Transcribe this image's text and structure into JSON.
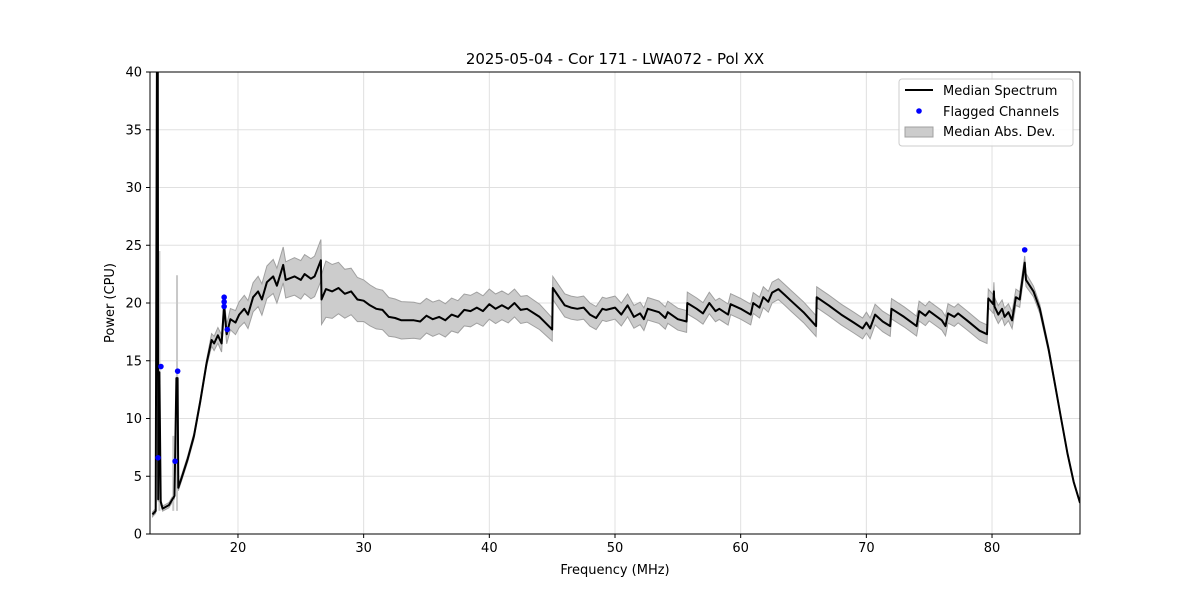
{
  "chart_data": {
    "type": "line",
    "title": "2025-05-04 - Cor 171 - LWA072 - Pol XX",
    "xlabel": "Frequency (MHz)",
    "ylabel": "Power (CPU)",
    "xlim": [
      13.0,
      87.0
    ],
    "ylim": [
      0,
      40
    ],
    "xticks": [
      20,
      30,
      40,
      50,
      60,
      70,
      80
    ],
    "yticks": [
      0,
      5,
      10,
      15,
      20,
      25,
      30,
      35,
      40
    ],
    "grid": true,
    "legend": {
      "placement": "top-right",
      "entries": [
        "Median Spectrum",
        "Flagged Channels",
        "Median Abs. Dev."
      ]
    },
    "colors": {
      "median": "#000000",
      "flagged": "#0000ff",
      "mad_fill": "#cccccc",
      "mad_edge": "#a0a0a0"
    },
    "median_spectrum": [
      [
        13.2,
        1.7
      ],
      [
        13.45,
        2.0
      ],
      [
        13.55,
        40
      ],
      [
        13.62,
        40
      ],
      [
        13.65,
        3
      ],
      [
        13.75,
        14
      ],
      [
        13.85,
        2.8
      ],
      [
        14.0,
        2.2
      ],
      [
        14.5,
        2.5
      ],
      [
        14.95,
        3.3
      ],
      [
        15.1,
        13.5
      ],
      [
        15.2,
        13.5
      ],
      [
        15.25,
        4.0
      ],
      [
        15.5,
        4.8
      ],
      [
        16,
        6.5
      ],
      [
        16.5,
        8.5
      ],
      [
        17,
        11.5
      ],
      [
        17.5,
        14.8
      ],
      [
        17.9,
        16.8
      ],
      [
        18.1,
        16.5
      ],
      [
        18.4,
        17.2
      ],
      [
        18.7,
        16.5
      ],
      [
        18.9,
        19.8
      ],
      [
        19.0,
        18.5
      ],
      [
        19.1,
        17.3
      ],
      [
        19.4,
        18.6
      ],
      [
        19.8,
        18.3
      ],
      [
        20.1,
        19.0
      ],
      [
        20.5,
        19.5
      ],
      [
        20.8,
        19.0
      ],
      [
        21.2,
        20.5
      ],
      [
        21.6,
        21.0
      ],
      [
        21.9,
        20.3
      ],
      [
        22.3,
        21.8
      ],
      [
        22.8,
        22.3
      ],
      [
        23.1,
        21.5
      ],
      [
        23.6,
        23.3
      ],
      [
        23.8,
        22.0
      ],
      [
        24.5,
        22.3
      ],
      [
        25,
        22
      ],
      [
        25.3,
        22.5
      ],
      [
        25.8,
        22.1
      ],
      [
        26.1,
        22.3
      ],
      [
        26.6,
        23.7
      ],
      [
        26.65,
        20.3
      ],
      [
        27,
        21.2
      ],
      [
        27.5,
        21.0
      ],
      [
        28,
        21.3
      ],
      [
        28.5,
        20.8
      ],
      [
        29,
        21.0
      ],
      [
        29.5,
        20.3
      ],
      [
        30,
        20.2
      ],
      [
        30.5,
        19.8
      ],
      [
        31,
        19.5
      ],
      [
        31.5,
        19.4
      ],
      [
        32,
        18.8
      ],
      [
        32.5,
        18.7
      ],
      [
        33,
        18.5
      ],
      [
        34,
        18.5
      ],
      [
        34.5,
        18.4
      ],
      [
        35,
        18.9
      ],
      [
        35.5,
        18.6
      ],
      [
        36,
        18.8
      ],
      [
        36.5,
        18.5
      ],
      [
        37,
        19.0
      ],
      [
        37.5,
        18.8
      ],
      [
        38,
        19.4
      ],
      [
        38.5,
        19.3
      ],
      [
        39,
        19.6
      ],
      [
        39.5,
        19.3
      ],
      [
        40,
        19.9
      ],
      [
        40.5,
        19.5
      ],
      [
        41,
        19.8
      ],
      [
        41.5,
        19.5
      ],
      [
        42,
        20
      ],
      [
        42.5,
        19.4
      ],
      [
        43,
        19.5
      ],
      [
        44,
        18.8
      ],
      [
        45,
        17.7
      ],
      [
        45.05,
        21.3
      ],
      [
        46,
        19.8
      ],
      [
        46.5,
        19.6
      ],
      [
        47,
        19.5
      ],
      [
        47.5,
        19.6
      ],
      [
        48,
        19.0
      ],
      [
        48.5,
        18.7
      ],
      [
        49,
        19.5
      ],
      [
        49.3,
        19.4
      ],
      [
        50,
        19.6
      ],
      [
        50.5,
        19.0
      ],
      [
        51,
        19.8
      ],
      [
        51.5,
        18.8
      ],
      [
        52,
        19.1
      ],
      [
        52.3,
        18.6
      ],
      [
        52.6,
        19.5
      ],
      [
        53.5,
        19.2
      ],
      [
        54,
        18.7
      ],
      [
        54.2,
        19.2
      ],
      [
        55,
        18.6
      ],
      [
        55.7,
        18.4
      ],
      [
        55.75,
        20.0
      ],
      [
        56.5,
        19.5
      ],
      [
        57,
        19.1
      ],
      [
        57.5,
        20.0
      ],
      [
        58,
        19.3
      ],
      [
        58.3,
        19.5
      ],
      [
        59,
        19.0
      ],
      [
        59.2,
        19.9
      ],
      [
        60,
        19.5
      ],
      [
        60.8,
        19.0
      ],
      [
        61,
        20.0
      ],
      [
        61.5,
        19.6
      ],
      [
        61.8,
        20.5
      ],
      [
        62.2,
        20.1
      ],
      [
        62.5,
        20.9
      ],
      [
        63,
        21.2
      ],
      [
        63.5,
        20.7
      ],
      [
        64,
        20.2
      ],
      [
        65,
        19.2
      ],
      [
        66,
        18.0
      ],
      [
        66.05,
        20.5
      ],
      [
        67,
        19.8
      ],
      [
        68,
        19.0
      ],
      [
        69,
        18.3
      ],
      [
        69.7,
        17.8
      ],
      [
        70,
        18.3
      ],
      [
        70.3,
        17.8
      ],
      [
        70.7,
        19.0
      ],
      [
        71.3,
        18.4
      ],
      [
        71.9,
        18.0
      ],
      [
        72,
        19.5
      ],
      [
        73,
        18.8
      ],
      [
        74,
        18.0
      ],
      [
        74.2,
        19.3
      ],
      [
        74.7,
        18.9
      ],
      [
        75,
        19.3
      ],
      [
        76,
        18.5
      ],
      [
        76.3,
        18.0
      ],
      [
        76.5,
        19.1
      ],
      [
        77,
        18.8
      ],
      [
        77.3,
        19.1
      ],
      [
        78,
        18.5
      ],
      [
        79,
        17.6
      ],
      [
        79.6,
        17.3
      ],
      [
        79.7,
        20.4
      ],
      [
        80.1,
        19.9
      ],
      [
        80.15,
        21.0
      ],
      [
        80.2,
        19.7
      ],
      [
        80.5,
        19.0
      ],
      [
        80.8,
        19.5
      ],
      [
        81,
        18.8
      ],
      [
        81.3,
        19.2
      ],
      [
        81.6,
        18.5
      ],
      [
        81.9,
        20.5
      ],
      [
        82.2,
        20.3
      ],
      [
        82.6,
        23.5
      ],
      [
        82.7,
        22
      ],
      [
        83.3,
        21
      ],
      [
        83.8,
        19.5
      ],
      [
        84.5,
        16
      ],
      [
        85,
        13
      ],
      [
        85.5,
        10
      ],
      [
        86,
        7
      ],
      [
        86.5,
        4.5
      ],
      [
        87,
        2.7
      ]
    ],
    "mad_profile": [
      [
        13.2,
        0.2
      ],
      [
        17.5,
        0.3
      ],
      [
        18,
        0.6
      ],
      [
        19,
        0.8
      ],
      [
        20,
        1.1
      ],
      [
        23,
        1.5
      ],
      [
        26.6,
        1.8
      ],
      [
        26.7,
        2.5
      ],
      [
        30,
        1.8
      ],
      [
        35,
        1.5
      ],
      [
        40,
        1.3
      ],
      [
        44,
        1.1
      ],
      [
        45,
        1.0
      ],
      [
        50,
        1.0
      ],
      [
        60,
        0.9
      ],
      [
        70,
        0.9
      ],
      [
        80,
        0.8
      ],
      [
        82,
        0.7
      ],
      [
        83,
        0.5
      ],
      [
        85,
        0.2
      ],
      [
        87,
        0.1
      ]
    ],
    "mad_spikes": [
      [
        13.75,
        24.5
      ],
      [
        15.15,
        22.4
      ],
      [
        14.85,
        8.5
      ]
    ],
    "flagged_channels": [
      [
        13.64,
        6.6
      ],
      [
        13.87,
        14.5
      ],
      [
        15.0,
        6.3
      ],
      [
        15.2,
        14.1
      ],
      [
        18.9,
        20.5
      ],
      [
        18.9,
        20.1
      ],
      [
        18.9,
        19.7
      ],
      [
        19.15,
        17.7
      ],
      [
        82.6,
        24.6
      ]
    ]
  }
}
